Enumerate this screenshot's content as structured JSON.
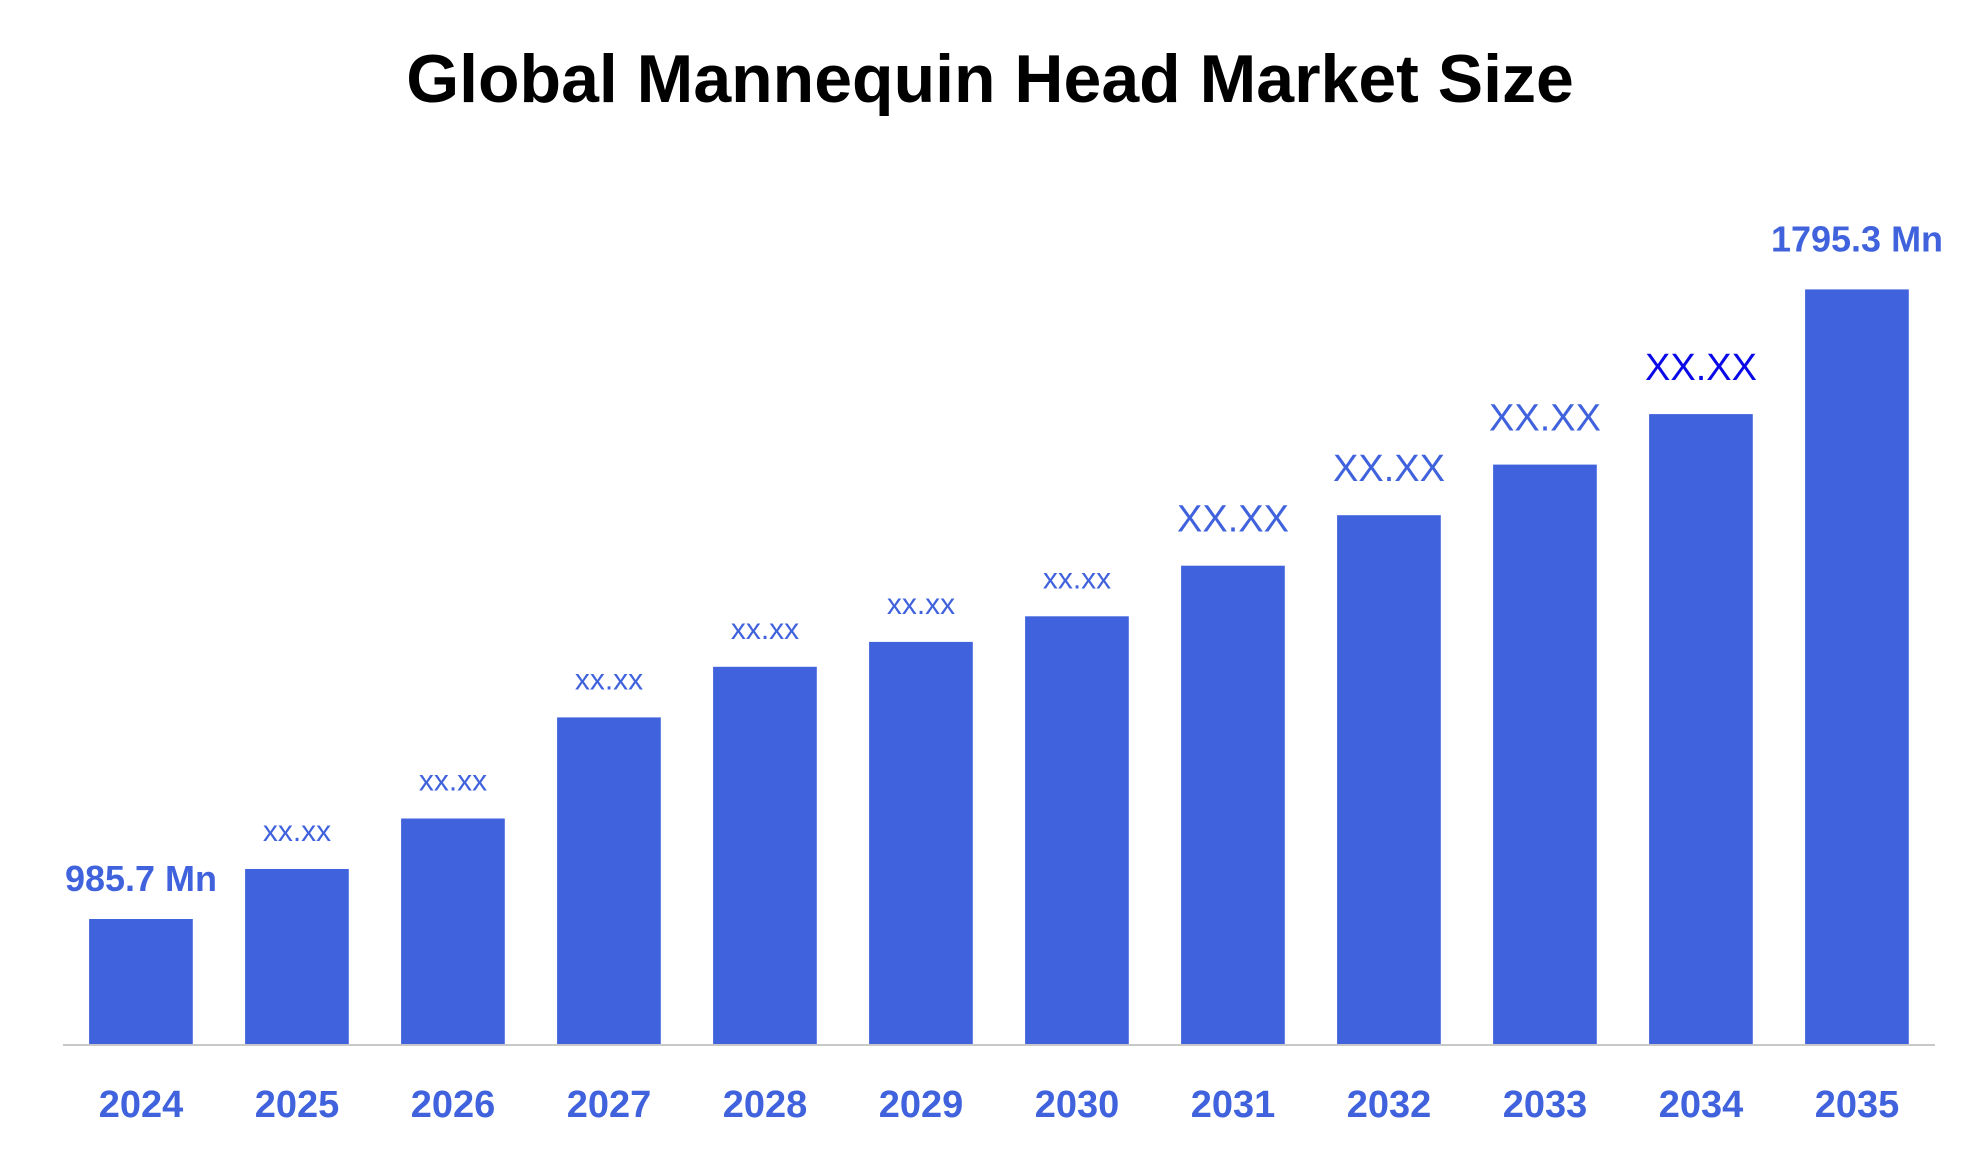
{
  "colors": {
    "bar": "#4063dd",
    "label": "#4063dd",
    "label_highlight": "#0a0ae8",
    "axis": "#c8c8c8",
    "title": "#000000"
  },
  "chart_data": {
    "type": "bar",
    "title": "Global Mannequin Head Market Size",
    "xlabel": "",
    "ylabel": "",
    "categories": [
      "2024",
      "2025",
      "2026",
      "2027",
      "2028",
      "2029",
      "2030",
      "2031",
      "2032",
      "2033",
      "2034",
      "2035"
    ],
    "values": [
      985.7,
      1050,
      1115,
      1245,
      1310,
      1342,
      1375,
      1440,
      1505,
      1570,
      1635,
      1795.3
    ],
    "data_labels": [
      "985.7 Mn",
      "xx.xx",
      "xx.xx",
      "xx.xx",
      "xx.xx",
      "xx.xx",
      "xx.xx",
      "XX.XX",
      "XX.XX",
      "XX.XX",
      "XX.XX",
      "1795.3 Mn"
    ],
    "ylim": [
      825,
      1810
    ],
    "grid": false,
    "legend": "none"
  }
}
